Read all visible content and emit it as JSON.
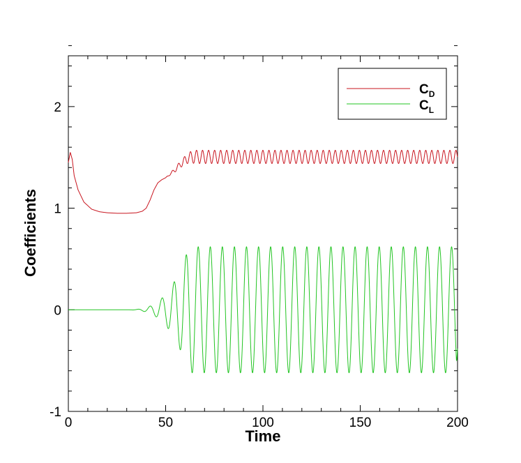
{
  "chart_data": {
    "type": "line",
    "title": "",
    "xlabel": "Time",
    "ylabel": "Coefficients",
    "xlim": [
      0,
      200
    ],
    "ylim": [
      -1,
      2.5
    ],
    "x_ticks": [
      0,
      50,
      100,
      150,
      200
    ],
    "x_tick_labels": [
      "0",
      "50",
      "100",
      "150",
      "200"
    ],
    "y_ticks": [
      -1,
      0,
      1,
      2
    ],
    "y_tick_labels": [
      "-1",
      "0",
      "1",
      "2"
    ],
    "grid": false,
    "legend_position": "top-right",
    "series": [
      {
        "name": "CD",
        "name_main": "C",
        "name_sub": "D",
        "color": "#c8141e",
        "description": "Drag coefficient: starts ~1.52, decays to ~0.95 near t=30, rises around t=45, oscillates between ~1.44 and ~1.57 after t~60",
        "x": [
          0,
          1,
          2,
          3,
          5,
          8,
          12,
          16,
          20,
          25,
          30,
          35,
          38,
          40,
          42,
          44,
          46,
          48,
          50,
          52,
          55,
          58,
          60,
          62,
          65
        ],
        "values": [
          1.45,
          1.55,
          1.48,
          1.32,
          1.18,
          1.06,
          0.99,
          0.965,
          0.955,
          0.95,
          0.95,
          0.955,
          0.97,
          1.0,
          1.08,
          1.18,
          1.25,
          1.28,
          1.3,
          1.33,
          1.38,
          1.44,
          1.47,
          1.5,
          1.505
        ],
        "osc_start": 50,
        "osc_mean": 1.505,
        "osc_amplitude": 0.065,
        "osc_period": 3.1
      },
      {
        "name": "CL",
        "name_main": "C",
        "name_sub": "L",
        "color": "#22c422",
        "description": "Lift coefficient: ~0 until t~30, growing oscillation from t~35 to t~60, then steady oscillation of amplitude ~0.62 around 0",
        "x": [
          0,
          30
        ],
        "values": [
          0,
          0
        ],
        "growth_start": 28,
        "saturation_time": 62,
        "max_amplitude": 0.62,
        "period": 6.2,
        "final_value": -0.36
      }
    ]
  }
}
